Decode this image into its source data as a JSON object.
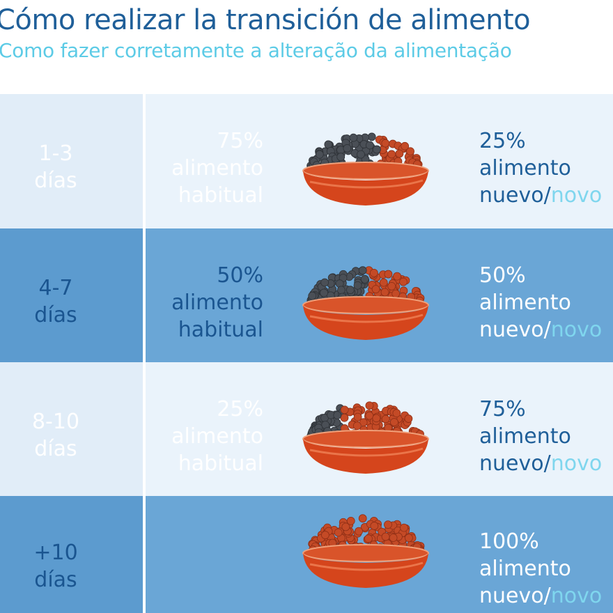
{
  "header": {
    "title": "Cómo realizar la transición de alimento",
    "subtitle": "Como fazer corretamente a alteração da alimentação"
  },
  "rows": [
    {
      "days": [
        "1-3",
        "días"
      ],
      "habitual": [
        "75%",
        "alimento",
        "habitual"
      ],
      "new": [
        "25%",
        "alimento"
      ],
      "new_word": "nuevo/",
      "new_word_pt": "novo"
    },
    {
      "days": [
        "4-7",
        "días"
      ],
      "habitual": [
        "50%",
        "alimento",
        "habitual"
      ],
      "new": [
        "50%",
        "alimento"
      ],
      "new_word": "nuevo/",
      "new_word_pt": "novo"
    },
    {
      "days": [
        "8-10",
        "días"
      ],
      "habitual": [
        "25%",
        "alimento",
        "habitual"
      ],
      "new": [
        "75%",
        "alimento"
      ],
      "new_word": "nuevo/",
      "new_word_pt": "novo"
    },
    {
      "days": [
        "+10",
        "días"
      ],
      "habitual": [],
      "new": [
        "100%",
        "alimento"
      ],
      "new_word": "nuevo/",
      "new_word_pt": "novo"
    }
  ]
}
